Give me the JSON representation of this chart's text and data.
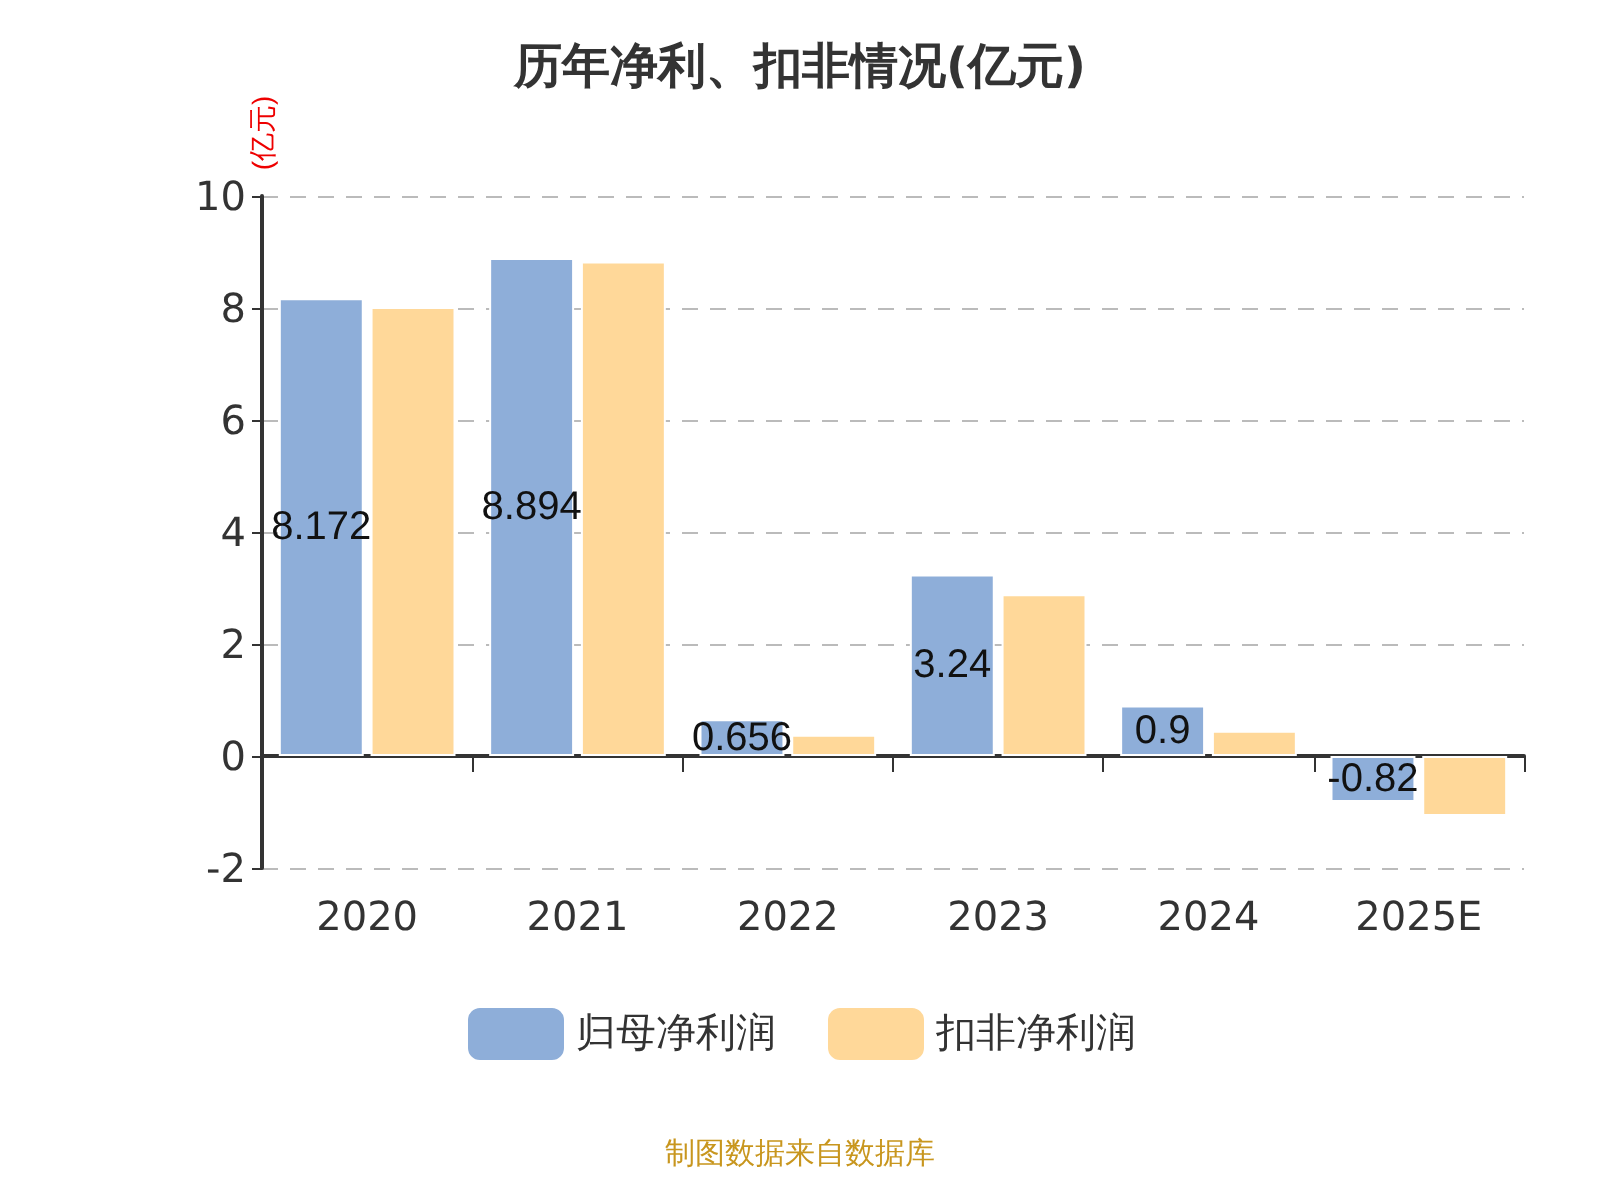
{
  "chart_data": {
    "type": "bar",
    "title": "历年净利、扣非情况(亿元)",
    "ylabel": "(亿元)",
    "categories": [
      "2020",
      "2021",
      "2022",
      "2023",
      "2024",
      "2025E"
    ],
    "series": [
      {
        "name": "归母净利润",
        "color": "#8eaed9",
        "values": [
          8.172,
          8.894,
          0.656,
          3.24,
          0.9,
          -0.82
        ],
        "value_labels": [
          "8.172",
          "8.894",
          "0.656",
          "3.24",
          "0.9",
          "-0.82"
        ]
      },
      {
        "name": "扣非净利润",
        "color": "#ffd899",
        "values": [
          8.02,
          8.83,
          0.38,
          2.89,
          0.45,
          -1.07
        ]
      }
    ],
    "ylim": [
      -2,
      10
    ],
    "yticks": [
      -2,
      0,
      2,
      4,
      6,
      8,
      10
    ],
    "grid": "y",
    "legend": "bottom",
    "annotations": [
      "制图数据来自数据库"
    ]
  }
}
